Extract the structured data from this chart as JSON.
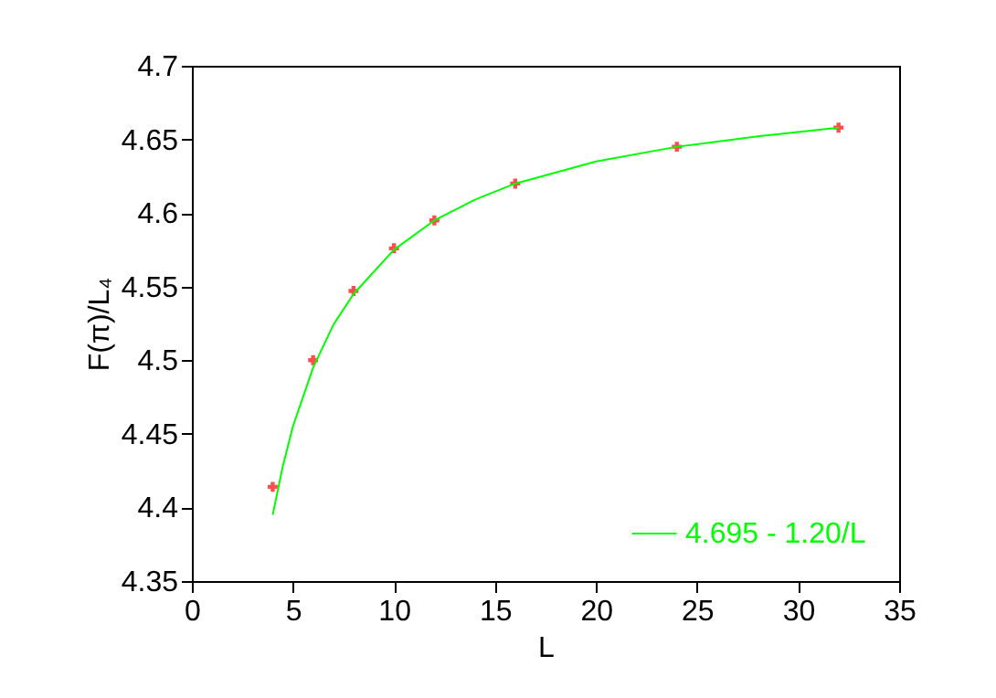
{
  "chart_data": {
    "type": "scatter",
    "xlabel": "L",
    "ylabel": "F(π)/L₄",
    "xlim": [
      0,
      35
    ],
    "xticks": [
      0,
      5,
      10,
      15,
      20,
      25,
      30,
      35
    ],
    "ylim": [
      4.35,
      4.7
    ],
    "yticks": [
      4.35,
      4.4,
      4.45,
      4.5,
      4.55,
      4.6,
      4.65,
      4.7
    ],
    "grid": false,
    "legend": "bottom right",
    "series": [
      {
        "marker": "cross",
        "color": "#ff0000",
        "x": [
          4,
          6,
          8,
          10,
          12,
          16,
          24,
          32
        ],
        "values": [
          4.414,
          4.5,
          4.547,
          4.576,
          4.595,
          4.62,
          4.645,
          4.658
        ]
      },
      {
        "type": "line",
        "name": "4.695 - 1.20/L",
        "color": "#00ff00",
        "marker": "none",
        "line_style": "solid",
        "x": [
          4,
          4.5,
          5,
          6,
          7,
          8,
          10,
          12,
          14,
          16,
          20,
          24,
          28,
          32
        ],
        "values": [
          4.395,
          4.428,
          4.455,
          4.495,
          4.524,
          4.545,
          4.575,
          4.595,
          4.609,
          4.62,
          4.635,
          4.645,
          4.652,
          4.658
        ]
      }
    ]
  }
}
